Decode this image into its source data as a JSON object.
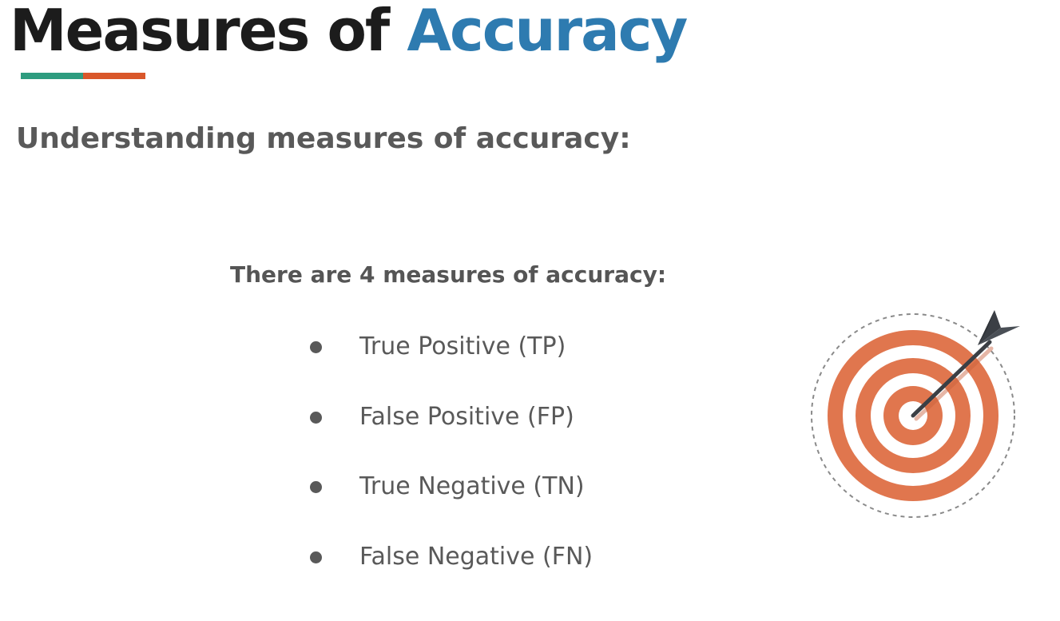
{
  "slide": {
    "title_main": "Measures of",
    "title_accent": "Accuracy",
    "subtitle": "Understanding measures of accuracy:",
    "intro": "There are 4 measures of accuracy:",
    "measures": [
      {
        "label": "True Positive (TP)"
      },
      {
        "label": "False Positive (FP)"
      },
      {
        "label": "True Negative (TN)"
      },
      {
        "label": "False Negative (FN)"
      }
    ],
    "illustration": {
      "icon": "target-with-arrow-icon"
    }
  },
  "colors": {
    "title_text": "#1c1c1c",
    "title_accent": "#2e7bb0",
    "underline_teal": "#2e9c7f",
    "underline_orange": "#d9572a",
    "body_text": "#595959",
    "target_orange": "#e0764e",
    "arrow_dark": "#3b3f45"
  }
}
